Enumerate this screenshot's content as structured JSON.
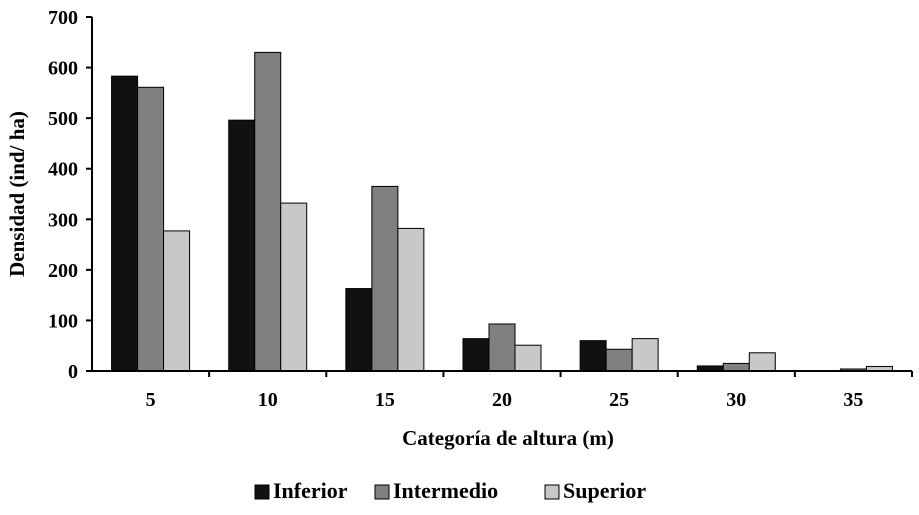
{
  "chart_data": {
    "type": "bar",
    "title": "",
    "xlabel": "Categoría de altura (m)",
    "ylabel": "Densidad (ind/ ha)",
    "ylim": [
      0,
      700
    ],
    "yticks": [
      "0",
      "100",
      "200",
      "300",
      "400",
      "500",
      "600",
      "700"
    ],
    "categories": [
      "5",
      "10",
      "15",
      "20",
      "25",
      "30",
      "35"
    ],
    "series": [
      {
        "name": "Inferior",
        "color": "#111111",
        "values": [
          583,
          496,
          163,
          64,
          60,
          10,
          0
        ]
      },
      {
        "name": "Intermedio",
        "color": "#808080",
        "values": [
          561,
          630,
          365,
          93,
          43,
          15,
          4
        ]
      },
      {
        "name": "Superior",
        "color": "#c8c8c8",
        "values": [
          277,
          332,
          282,
          51,
          64,
          36,
          9
        ]
      }
    ],
    "grid": false,
    "legend": "bottom"
  }
}
